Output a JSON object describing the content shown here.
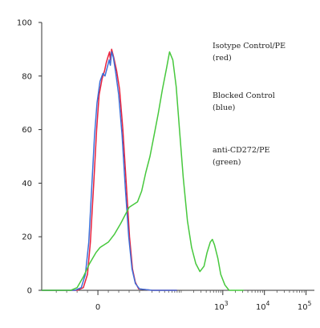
{
  "chart_data": {
    "type": "line",
    "title": "",
    "xlabel": "",
    "ylabel": "",
    "ylim": [
      0,
      100
    ],
    "yticks": [
      0,
      20,
      40,
      60,
      80,
      100
    ],
    "x_axis_note": "biexponential (logicle) fluorescence axis; x values below are in decades (0 = origin tick)",
    "xticks": [
      {
        "x": 0,
        "label": "0",
        "sup": ""
      },
      {
        "x": 3,
        "label": "10",
        "sup": "3"
      },
      {
        "x": 4,
        "label": "10",
        "sup": "4"
      },
      {
        "x": 5,
        "label": "10",
        "sup": "5"
      }
    ],
    "xlim": [
      -1.35,
      5.2
    ],
    "grid": false,
    "legend_position": "right",
    "series": [
      {
        "name": "Isotype Control/PE (red)",
        "color": "#e8213d",
        "points": [
          [
            -1.35,
            0
          ],
          [
            -0.5,
            0
          ],
          [
            -0.35,
            1
          ],
          [
            -0.25,
            6
          ],
          [
            -0.18,
            18
          ],
          [
            -0.1,
            40
          ],
          [
            -0.03,
            60
          ],
          [
            0.03,
            73
          ],
          [
            0.1,
            79
          ],
          [
            0.16,
            82
          ],
          [
            0.2,
            85
          ],
          [
            0.24,
            87
          ],
          [
            0.28,
            89
          ],
          [
            0.3,
            86
          ],
          [
            0.33,
            90
          ],
          [
            0.38,
            87
          ],
          [
            0.45,
            82
          ],
          [
            0.52,
            75
          ],
          [
            0.6,
            60
          ],
          [
            0.68,
            40
          ],
          [
            0.76,
            20
          ],
          [
            0.83,
            8
          ],
          [
            0.9,
            3
          ],
          [
            0.98,
            0.5
          ],
          [
            1.3,
            0
          ],
          [
            1.9,
            0
          ]
        ]
      },
      {
        "name": "Blocked Control (blue)",
        "color": "#3d6fd8",
        "points": [
          [
            -1.35,
            0
          ],
          [
            -0.55,
            0
          ],
          [
            -0.4,
            1
          ],
          [
            -0.3,
            6
          ],
          [
            -0.22,
            18
          ],
          [
            -0.15,
            38
          ],
          [
            -0.08,
            58
          ],
          [
            -0.02,
            70
          ],
          [
            0.05,
            78
          ],
          [
            0.12,
            81
          ],
          [
            0.17,
            80
          ],
          [
            0.22,
            83
          ],
          [
            0.27,
            86
          ],
          [
            0.3,
            84
          ],
          [
            0.33,
            89
          ],
          [
            0.37,
            87
          ],
          [
            0.43,
            81
          ],
          [
            0.5,
            73
          ],
          [
            0.58,
            58
          ],
          [
            0.66,
            38
          ],
          [
            0.74,
            20
          ],
          [
            0.82,
            8
          ],
          [
            0.9,
            2.5
          ],
          [
            1.0,
            0.5
          ],
          [
            1.3,
            0
          ],
          [
            1.9,
            0
          ]
        ]
      },
      {
        "name": "anti-CD272/PE (green)",
        "color": "#47c83d",
        "points": [
          [
            -1.35,
            0
          ],
          [
            -0.65,
            0
          ],
          [
            -0.5,
            1
          ],
          [
            -0.35,
            5
          ],
          [
            -0.2,
            10
          ],
          [
            -0.05,
            14
          ],
          [
            0.05,
            16
          ],
          [
            0.15,
            17
          ],
          [
            0.25,
            18
          ],
          [
            0.4,
            21
          ],
          [
            0.55,
            25
          ],
          [
            0.65,
            28
          ],
          [
            0.75,
            31
          ],
          [
            0.85,
            32
          ],
          [
            0.95,
            33
          ],
          [
            1.05,
            37
          ],
          [
            1.15,
            44
          ],
          [
            1.25,
            50
          ],
          [
            1.35,
            58
          ],
          [
            1.45,
            66
          ],
          [
            1.55,
            75
          ],
          [
            1.65,
            83
          ],
          [
            1.72,
            89
          ],
          [
            1.8,
            86
          ],
          [
            1.88,
            76
          ],
          [
            1.96,
            60
          ],
          [
            2.05,
            42
          ],
          [
            2.15,
            26
          ],
          [
            2.25,
            16
          ],
          [
            2.35,
            10
          ],
          [
            2.45,
            7
          ],
          [
            2.55,
            9
          ],
          [
            2.62,
            14
          ],
          [
            2.7,
            18
          ],
          [
            2.75,
            19
          ],
          [
            2.8,
            17
          ],
          [
            2.88,
            12
          ],
          [
            2.95,
            6
          ],
          [
            3.05,
            2
          ],
          [
            3.15,
            0
          ],
          [
            3.5,
            0
          ]
        ]
      }
    ],
    "legend": [
      {
        "line1": "Isotype Control/PE",
        "line2": "(red)"
      },
      {
        "line1": "Blocked Control",
        "line2": "(blue)"
      },
      {
        "line1": "anti-CD272/PE",
        "line2": "(green)"
      }
    ]
  }
}
